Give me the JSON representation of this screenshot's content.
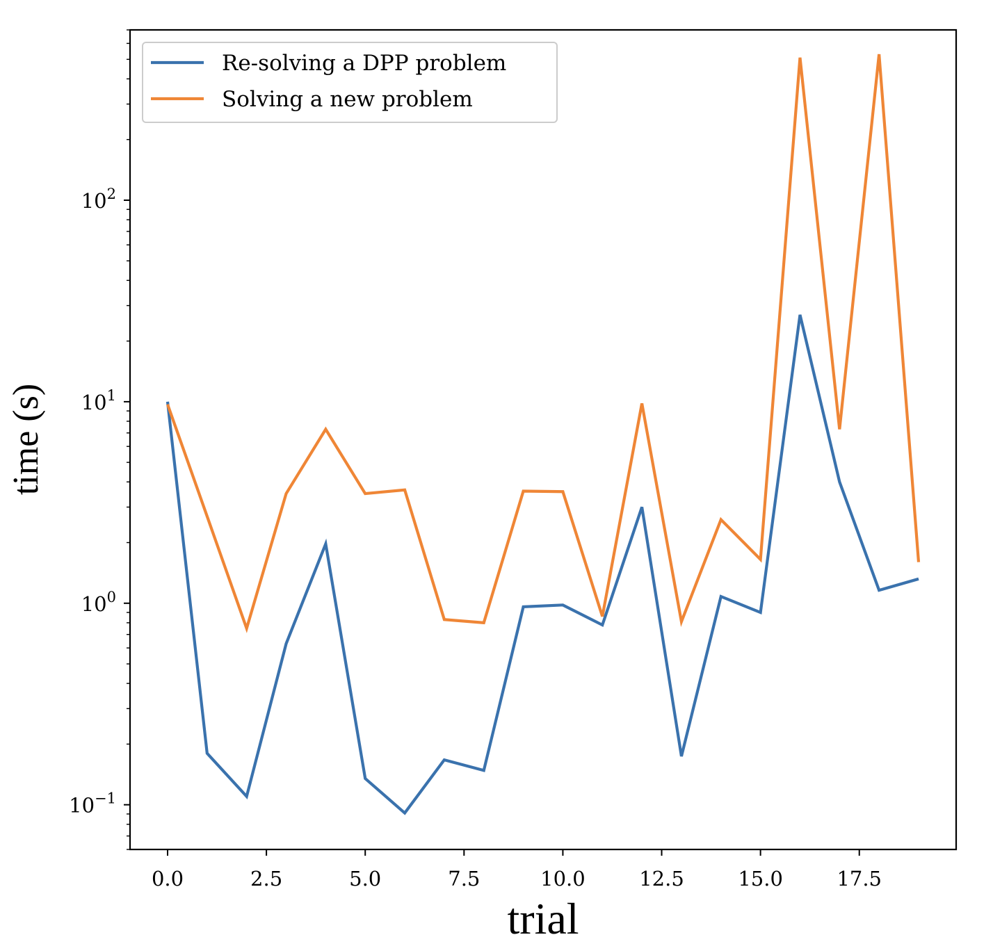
{
  "chart_data": {
    "type": "line",
    "xlabel": "trial",
    "ylabel": "time (s)",
    "x": [
      0,
      1,
      2,
      3,
      4,
      5,
      6,
      7,
      8,
      9,
      10,
      11,
      12,
      13,
      14,
      15,
      16,
      17,
      18,
      19
    ],
    "series": [
      {
        "name": "Re-solving a DPP problem",
        "color": "#3a72ad",
        "values": [
          10,
          0.18,
          0.11,
          0.63,
          1.97,
          0.135,
          0.091,
          0.167,
          0.148,
          0.96,
          0.98,
          0.78,
          3.0,
          0.174,
          1.08,
          0.9,
          27,
          4.0,
          1.16,
          1.32
        ]
      },
      {
        "name": "Solving a new problem",
        "color": "#ef8636",
        "values": [
          9.7,
          2.7,
          0.75,
          3.5,
          7.3,
          3.5,
          3.65,
          0.83,
          0.8,
          3.6,
          3.58,
          0.86,
          9.8,
          0.81,
          2.6,
          1.65,
          510,
          7.3,
          530,
          1.6
        ]
      }
    ],
    "xlim": [
      -0.95,
      19.95
    ],
    "ylim": [
      0.06,
      700
    ],
    "yscale": "log",
    "x_ticks": [
      0,
      2.5,
      5,
      7.5,
      10,
      12.5,
      15,
      17.5
    ],
    "x_tick_labels": [
      "0.0",
      "2.5",
      "5.0",
      "7.5",
      "10.0",
      "12.5",
      "15.0",
      "17.5"
    ],
    "y_ticks": [
      0.1,
      1,
      10,
      100
    ],
    "y_tick_labels": [
      {
        "base": "10",
        "exp": "−1"
      },
      {
        "base": "10",
        "exp": "0"
      },
      {
        "base": "10",
        "exp": "1"
      },
      {
        "base": "10",
        "exp": "2"
      }
    ],
    "grid": false,
    "legend_position": "top-left"
  }
}
